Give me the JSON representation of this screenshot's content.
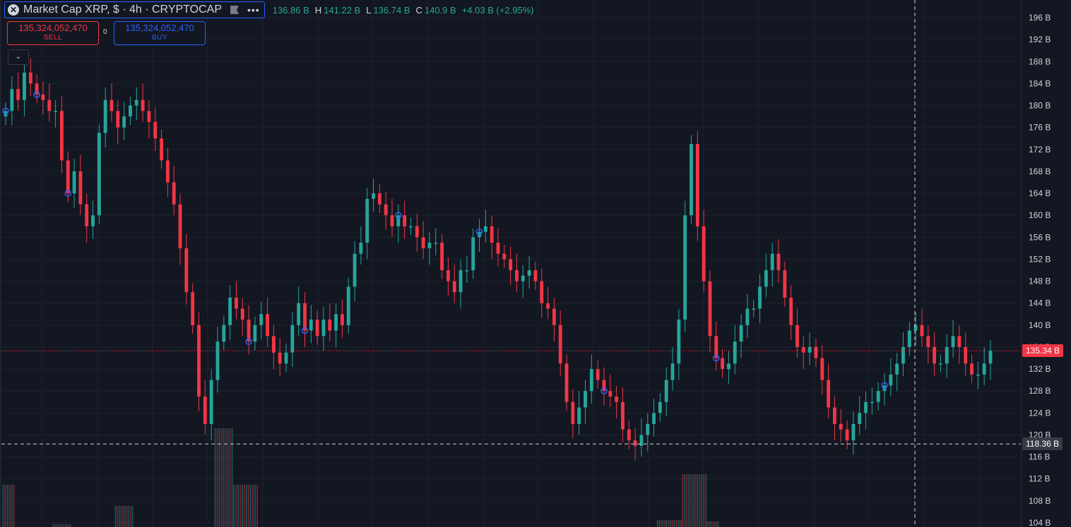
{
  "header": {
    "title": "Market Cap XRP, $ · 4h · CRYPTOCAP",
    "close_icon": "close-icon",
    "flag_icon": "flag-icon",
    "more_icon": "more-dots-icon",
    "ohlc": [
      {
        "key": "",
        "value": "136.86 B"
      },
      {
        "key": "H",
        "value": "141.22 B"
      },
      {
        "key": "L",
        "value": "136.74 B"
      },
      {
        "key": "C",
        "value": "140.9 B"
      }
    ],
    "change": "+4.03 B (+2.95%)"
  },
  "trade": {
    "sell_value": "135,324,052,470",
    "sell_label": "SELL",
    "buy_value": "135,324,052,470",
    "buy_label": "BUY",
    "spread": "0"
  },
  "colors": {
    "up": "#26a69a",
    "down": "#f23645",
    "bg": "#131722",
    "grid": "#1e222d",
    "text": "#d1d4dc",
    "marker": "#2962ff"
  },
  "price_tag": "135.34 B",
  "crosshair_tag": "118.36 B",
  "chart_data": {
    "type": "candlestick",
    "symbol": "Market Cap XRP",
    "interval": "4h",
    "y_ticks": [
      104,
      108,
      112,
      116,
      120,
      124,
      128,
      132,
      136,
      140,
      144,
      148,
      152,
      156,
      160,
      164,
      168,
      172,
      176,
      180,
      184,
      188,
      192,
      196
    ],
    "y_tick_labels": [
      "104 B",
      "108 B",
      "112 B",
      "116 B",
      "120 B",
      "124 B",
      "128 B",
      "132 B",
      "136 B",
      "140 B",
      "144 B",
      "148 B",
      "152 B",
      "156 B",
      "160 B",
      "164 B",
      "168 B",
      "172 B",
      "176 B",
      "180 B",
      "184 B",
      "188 B",
      "192 B",
      "196 B"
    ],
    "ylim": [
      103.5,
      198.5
    ],
    "grid": true,
    "current_price": 135.34,
    "crosshair_price": 118.36,
    "closes": [
      179,
      183,
      181,
      186,
      184,
      182,
      181,
      179,
      179,
      170,
      164,
      168,
      162,
      158,
      160,
      175,
      181,
      179,
      176,
      178,
      180,
      181,
      179,
      177,
      174,
      170,
      166,
      162,
      154,
      146,
      140,
      127,
      122,
      130,
      137,
      140,
      145,
      143,
      141,
      137,
      140,
      142,
      138,
      135,
      133,
      135,
      140,
      144,
      139,
      141,
      138,
      141,
      139,
      142,
      140,
      147,
      153,
      155,
      163,
      164,
      162,
      160,
      158,
      160,
      158,
      158,
      156,
      154,
      155,
      155,
      150,
      148,
      146,
      150,
      150,
      156,
      157,
      158,
      155,
      153,
      152,
      150,
      148,
      149,
      150,
      148,
      144,
      143,
      140,
      133,
      126,
      122,
      125,
      128,
      132,
      130,
      128,
      127,
      126,
      121,
      119,
      118,
      120,
      122,
      124,
      126,
      130,
      133,
      141,
      160,
      173,
      158,
      148,
      138,
      134,
      132,
      133,
      137,
      140,
      143,
      143,
      147,
      150,
      153,
      150,
      145,
      140,
      136,
      135,
      136,
      134,
      130,
      125,
      122,
      121,
      119,
      122,
      124,
      126,
      126,
      128,
      129,
      131,
      133,
      136,
      139,
      140,
      138,
      136,
      133,
      133,
      136,
      138,
      136,
      133,
      131,
      131,
      133,
      135.3
    ],
    "marker_indices": [
      0,
      5,
      10,
      39,
      48,
      63,
      76,
      96,
      114,
      141
    ],
    "volume_clusters": [
      {
        "start": 0,
        "end": 1,
        "value": 60
      },
      {
        "start": 8,
        "end": 10,
        "value": 4
      },
      {
        "start": 18,
        "end": 20,
        "value": 30
      },
      {
        "start": 34,
        "end": 36,
        "value": 140
      },
      {
        "start": 37,
        "end": 40,
        "value": 60
      },
      {
        "start": 105,
        "end": 108,
        "value": 10
      },
      {
        "start": 109,
        "end": 112,
        "value": 75
      },
      {
        "start": 113,
        "end": 114,
        "value": 8
      }
    ]
  }
}
